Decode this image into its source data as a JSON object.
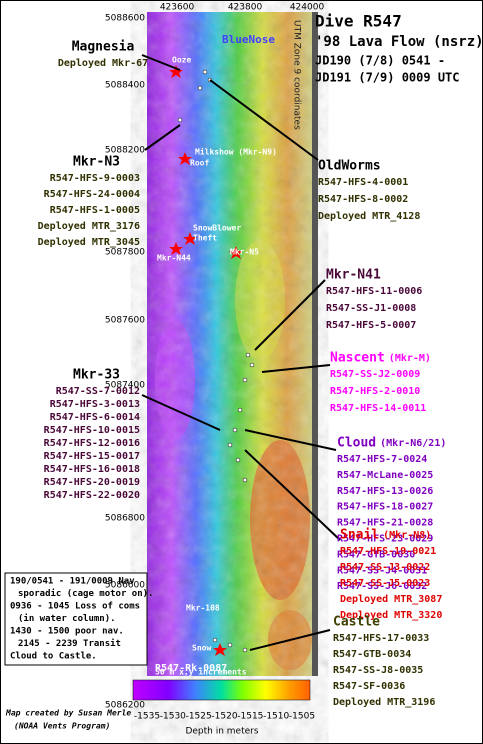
{
  "title": [
    "Dive R547",
    "'98 Lava Flow (nsrz)",
    "JD190 (7/8) 0541 -",
    "JD191 (7/9) 0009 UTC"
  ],
  "x_axis_labels": [
    "423600",
    "423800",
    "424000"
  ],
  "y_axis_labels": [
    "5088600",
    "5088400",
    "5088200",
    "5087800",
    "5087600",
    "5087400",
    "5086800",
    "5086600",
    "5086200"
  ],
  "utm_note": "UTM Zone 9 coordinates",
  "callouts": [
    {
      "heading": "Magnesia",
      "lines": [
        "Deployed Mkr-67"
      ]
    },
    {
      "heading": "Mkr-N3",
      "lines": [
        "R547-HFS-9-0003",
        "R547-HFS-24-0004",
        "R547-HFS-1-0005",
        "Deployed MTR_3176",
        "Deployed MTR_3045"
      ]
    },
    {
      "heading": "OldWorms",
      "lines": [
        "R547-HFS-4-0001",
        "R547-HFS-8-0002",
        "Deployed MTR_4128"
      ]
    },
    {
      "heading": "Mkr-N41",
      "lines": [
        "R547-HFS-11-0006",
        "R547-SS-J1-0008",
        "R547-HFS-5-0007"
      ]
    },
    {
      "heading": "Nascent",
      "sub": "(Mkr-M)",
      "lines": [
        "R547-SS-J2-0009",
        "R547-HFS-2-0010",
        "R547-HFS-14-0011"
      ]
    },
    {
      "heading": "Cloud",
      "sub": "(Mkr-N6/21)",
      "lines": [
        "R547-HFS-7-0024",
        "R547-McLane-0025",
        "R547-HFS-13-0026",
        "R547-HFS-18-0027",
        "R547-HFS-21-0028",
        "R547-HFS-23-0029",
        "R547-GTB-0030",
        "R547-SS-J4-0031",
        "R547-SS-J6-0032"
      ]
    },
    {
      "heading": "Mkr-33",
      "lines": [
        "R547-SS-7-0012",
        "R547-HFS-3-0013",
        "R547-HFS-6-0014",
        "R547-HFS-10-0015",
        "R547-HFS-12-0016",
        "R547-HFS-15-0017",
        "R547-HFS-16-0018",
        "R547-HFS-20-0019",
        "R547-HFS-22-0020"
      ]
    },
    {
      "heading": "Snail",
      "sub": "(Mkr-N8)",
      "lines": [
        "R547-HFS-19-0021",
        "R547-SS-J3-0022",
        "R547-SS-J5-0023",
        "Deployed MTR_3087",
        "Deployed MTR_3320"
      ]
    },
    {
      "heading": "Castle",
      "lines": [
        "R547-HFS-17-0033",
        "R547-GTB-0034",
        "R547-SS-J8-0035",
        "R547-SF-0036",
        "Deployed MTR_3196"
      ]
    }
  ],
  "map_labels": [
    "BlueNose",
    "Ooze",
    "Milkshow (Mkr-N9)",
    "Roof",
    "SnowBlower",
    "Theft",
    "Mkr-N44",
    "Mkr-N5",
    "Mkr-108",
    "Snow",
    "R547-Rk-0087",
    "50 m x,y increments"
  ],
  "notes": [
    "190/0541 - 191/0009 Nav",
    "sporadic (cage motor on).",
    "0936 - 1045 Loss of coms",
    "(in water column).",
    "1430 - 1500 poor nav.",
    "2145 - 2239 Transit",
    "Cloud to Castle."
  ],
  "colorbar_labels": [
    "-1535",
    "-1530",
    "-1525",
    "-1520",
    "-1515",
    "-1510",
    "-1505"
  ],
  "colorbar_title": "Depth in meters",
  "credit": [
    "Map created by Susan Merle",
    "(NOAA Vents Program)"
  ]
}
